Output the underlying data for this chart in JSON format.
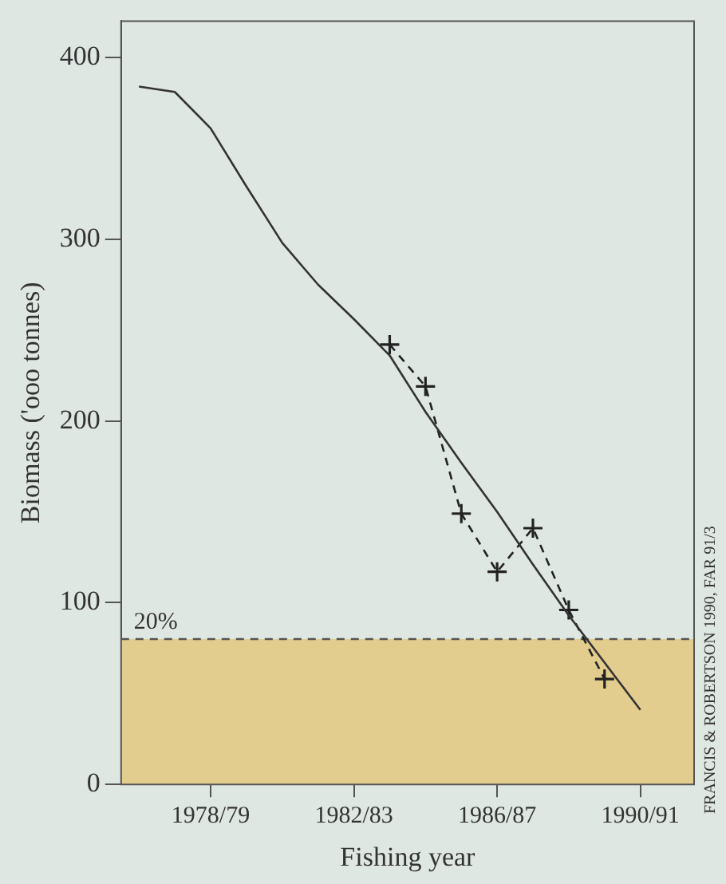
{
  "chart_data": {
    "type": "line",
    "xlabel": "Fishing year",
    "ylabel": "Biomass ('ooo tonnes)",
    "categories": [
      null,
      null,
      "1978/79",
      null,
      null,
      null,
      "1982/83",
      null,
      null,
      null,
      "1986/87",
      null,
      null,
      null,
      "1990/91",
      null
    ],
    "ylim": [
      0,
      420
    ],
    "yticks": [
      0,
      100,
      200,
      300,
      400
    ],
    "grid": false,
    "legend": false,
    "series": [
      {
        "color": "#333333",
        "marker": "none",
        "line_style": "solid",
        "values": [
          384,
          381,
          361,
          329,
          298,
          275,
          256,
          236,
          205,
          177,
          150,
          121,
          93,
          67,
          41,
          null
        ]
      },
      {
        "color": "#222222",
        "marker": "cross",
        "line_style": "dashed",
        "values": [
          null,
          null,
          null,
          null,
          null,
          null,
          null,
          242,
          219,
          149,
          117,
          141,
          96,
          58,
          null,
          null
        ]
      }
    ],
    "bands": [
      {
        "axis": "y",
        "from": 0,
        "to": 80,
        "color": "#e2cc8e",
        "label": "20%"
      }
    ],
    "ref_lines": [
      {
        "axis": "y",
        "value": 80,
        "line_style": "dashed",
        "color": "#555555"
      }
    ],
    "annotations": [
      "FRANCIS & ROBERTSON 1990, FAR 91/3"
    ]
  }
}
